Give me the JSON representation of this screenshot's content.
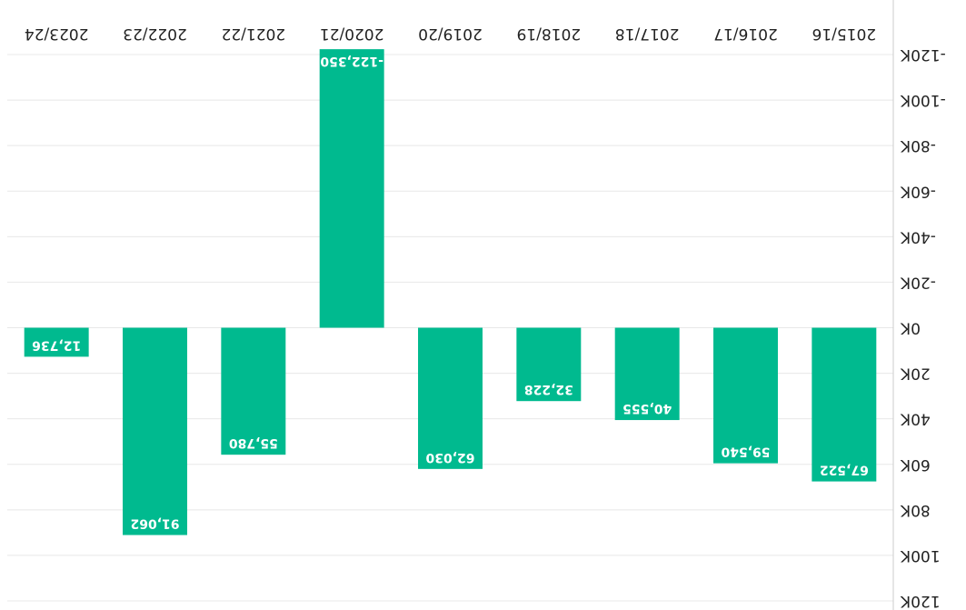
{
  "chart_data": {
    "type": "bar",
    "categories": [
      "2015/16",
      "2016/17",
      "2017/18",
      "2018/19",
      "2019/20",
      "2020/21",
      "2021/22",
      "2022/23",
      "2023/24"
    ],
    "values": [
      67522,
      59540,
      40555,
      32228,
      62030,
      -122350,
      55780,
      91062,
      12736
    ],
    "data_labels": [
      "67,522",
      "59,540",
      "40,555",
      "32,228",
      "62,030",
      "-122,350",
      "55,780",
      "91,062",
      "12,736"
    ],
    "ylim": [
      -120000,
      120000
    ],
    "y_ticks": [
      {
        "value": 120000,
        "label": "120K"
      },
      {
        "value": 100000,
        "label": "100K"
      },
      {
        "value": 80000,
        "label": "80K"
      },
      {
        "value": 60000,
        "label": "60K"
      },
      {
        "value": 40000,
        "label": "40K"
      },
      {
        "value": 20000,
        "label": "20K"
      },
      {
        "value": 0,
        "label": "0K"
      },
      {
        "value": -20000,
        "label": "-20K"
      },
      {
        "value": -40000,
        "label": "-40K"
      },
      {
        "value": -60000,
        "label": "-60K"
      },
      {
        "value": -80000,
        "label": "-80K"
      },
      {
        "value": -100000,
        "label": "-100K"
      },
      {
        "value": -120000,
        "label": "-120K"
      }
    ],
    "orientation": "rotated-180",
    "grid": true,
    "bar_color": "#00BA8F",
    "title": "",
    "xlabel": "",
    "ylabel": ""
  }
}
